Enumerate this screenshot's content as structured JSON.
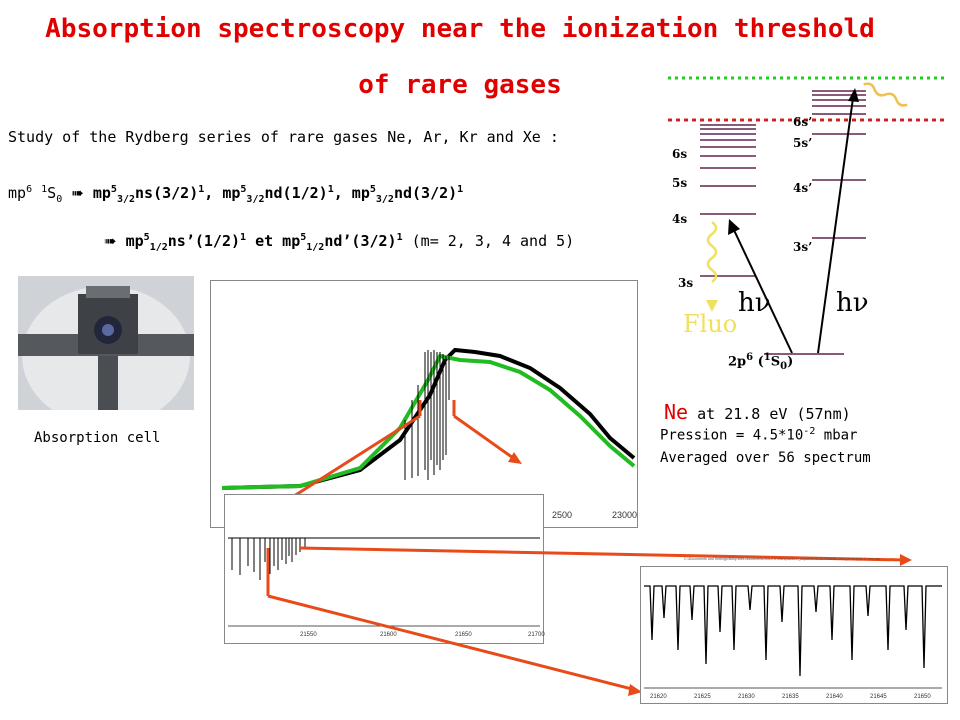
{
  "title_line1": "Absorption spectroscopy near the ionization threshold",
  "title_line2": "of rare gases",
  "intro": "Study of the  Rydberg series of rare gases Ne, Ar, Kr and Xe :",
  "transition1_prefix": "mp",
  "transition1_ground": "S",
  "transition2_tail": " (m= 2, 3, 4 and 5)",
  "photo_caption": "Absorption cell",
  "ne_label": "Ne",
  "ne_energy": " at 21.8 eV (57nm)",
  "pression": "Pression = 4.5*10",
  "pression_exp": "-2",
  "pression_unit": " mbar",
  "averaged": "Averaged over 56 spectrum",
  "diagram": {
    "left_levels": [
      "6s",
      "5s",
      "4s",
      "3s"
    ],
    "right_levels": [
      "6s’",
      "5s’",
      "4s’",
      "3s’"
    ],
    "ground": "2p",
    "hv": "hν",
    "fluo": "Fluo"
  },
  "spectrum_top": {
    "ticks": [
      "2500",
      "23000"
    ]
  },
  "spectrum_mid": {
    "ticks": [
      "21550",
      "21600",
      "21650",
      "21700"
    ]
  },
  "spectrum_zoom": {
    "header": "C:\\Documents and Settings\\Nelly\\Mes documents\\SOLEIL\\Manips2007\\_export\\070213-Pino\\58-old2\\p6-Ne4p5s-2-cem.stc",
    "ticks": [
      "21620",
      "21625",
      "21630",
      "21635",
      "21640",
      "21645",
      "21650"
    ]
  },
  "colors": {
    "title": "#e00000",
    "arrow": "#e84a1a",
    "fluo": "#f0e060",
    "green_dots": "#22cc22",
    "red_dots": "#cc2222"
  }
}
